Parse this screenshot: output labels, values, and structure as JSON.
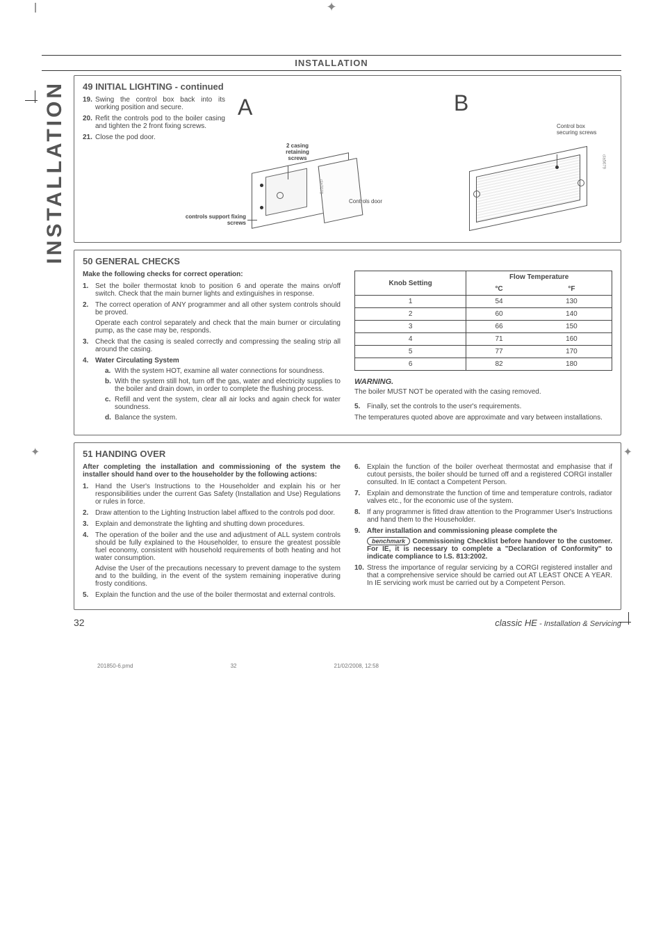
{
  "header_banner": "INSTALLATION",
  "side_tab": "INSTALLATION",
  "color_strip_left": [
    "#000000",
    "#000000",
    "#3a3a3a",
    "#6a6a6a",
    "#9a9a9a",
    "#c3c3c3",
    "#ffffff"
  ],
  "color_strip_right": [
    "#00aeef",
    "#ec008c",
    "#fff200",
    "#000000",
    "#ed1c24",
    "#00a651",
    "#2e3192"
  ],
  "section49": {
    "num": "49",
    "title": "INITIAL LIGHTING - continued",
    "items": [
      {
        "n": "19.",
        "t": "Swing the control box back into its working position and secure."
      },
      {
        "n": "20.",
        "t": "Refit the controls pod to the boiler casing and tighten the 2 front fixing screws."
      },
      {
        "n": "21.",
        "t": "Close the pod door."
      }
    ],
    "figA_letter": "A",
    "figB_letter": "B",
    "labels": {
      "casing_screws": "2 casing retaining screws",
      "support_screws": "controls support fixing screws",
      "controls_door": "Controls door",
      "control_box_screws": "Control box securing screws",
      "cla_a": "cla7078",
      "cla_b": "cla5679"
    }
  },
  "section50": {
    "num": "50",
    "title": "GENERAL CHECKS",
    "intro": "Make the following checks for correct operation:",
    "items": [
      {
        "n": "1.",
        "t": "Set the boiler thermostat knob to position 6 and operate the mains on/off switch. Check that the main burner lights and extinguishes in response."
      },
      {
        "n": "2.",
        "t": "The correct operation of ANY programmer and all other system controls should be proved.",
        "extra": "Operate each control separately and check that the main burner or circulating pump, as the case may be, responds."
      },
      {
        "n": "3.",
        "t": "Check that the casing is sealed correctly and compressing the sealing strip all around the casing."
      },
      {
        "n": "4.",
        "t": "Water Circulating System",
        "bold": true,
        "sub": [
          {
            "sn": "a.",
            "st": "With the system HOT, examine all water connections for soundness."
          },
          {
            "sn": "b.",
            "st": "With the system still hot, turn off the gas, water and electricity supplies to the boiler and drain down, in order to complete the flushing process."
          },
          {
            "sn": "c.",
            "st": "Refill and vent the system, clear all air locks and again check for water soundness."
          },
          {
            "sn": "d.",
            "st": "Balance the system."
          }
        ]
      }
    ],
    "table": {
      "header_setting": "Knob Setting",
      "header_flow": "Flow Temperature",
      "header_c": "°C",
      "header_f": "°F",
      "rows": [
        {
          "k": "1",
          "c": "54",
          "f": "130"
        },
        {
          "k": "2",
          "c": "60",
          "f": "140"
        },
        {
          "k": "3",
          "c": "66",
          "f": "150"
        },
        {
          "k": "4",
          "c": "71",
          "f": "160"
        },
        {
          "k": "5",
          "c": "77",
          "f": "170"
        },
        {
          "k": "6",
          "c": "82",
          "f": "180"
        }
      ]
    },
    "warning_title": "WARNING.",
    "warning_text": "The boiler MUST NOT be operated with the casing removed.",
    "item5": {
      "n": "5.",
      "t": "Finally, set the controls to the user's requirements."
    },
    "note": "The temperatures quoted above are approximate and vary between installations."
  },
  "section51": {
    "num": "51",
    "title": "HANDING OVER",
    "intro": "After completing the installation and commissioning of the system the installer should hand over to the householder by the following actions:",
    "left": [
      {
        "n": "1.",
        "t": "Hand the User's Instructions to the Householder and explain his or her responsibilities under the current Gas Safety (Installation and Use) Regulations or rules in force."
      },
      {
        "n": "2.",
        "t": "Draw attention to the Lighting Instruction label affixed to the controls pod door."
      },
      {
        "n": "3.",
        "t": "Explain and demonstrate the lighting and shutting down procedures."
      },
      {
        "n": "4.",
        "t": "The operation of the boiler and the use and adjustment of ALL system controls should be fully explained to the Householder, to ensure the greatest possible fuel economy, consistent with household requirements of both heating and hot water consumption.",
        "extra": "Advise the User of the precautions necessary to prevent damage to the system and to the building, in the event of the system remaining inoperative during frosty conditions."
      },
      {
        "n": "5.",
        "t": "Explain the function and the use of the boiler thermostat and external controls."
      }
    ],
    "right": [
      {
        "n": "6.",
        "t": "Explain the function of the boiler overheat thermostat and emphasise that if cutout persists, the boiler should be turned off and a registered CORGI installer consulted. In IE contact a Competent Person."
      },
      {
        "n": "7.",
        "t": "Explain and demonstrate the function of time and temperature controls, radiator valves etc., for the economic use of the system."
      },
      {
        "n": "8.",
        "t": "If any programmer is fitted draw attention to the Programmer User's Instructions and hand them to the Householder."
      },
      {
        "n": "9.",
        "bold": true,
        "t": "After installation and commissioning please complete the",
        "extra_html": true,
        "extra": " Commissioning Checklist before handover to the customer.  For IE, it is necessary to complete a \"Declaration of Conformity\" to indicate compliance to I.S. 813:2002.",
        "benchmark": "benchmark"
      },
      {
        "n": "10.",
        "t": "Stress the importance of regular servicing by a CORGI registered installer and that a comprehensive service should be carried out AT LEAST ONCE A YEAR.  In IE servicing work must be carried out by a Competent Person."
      }
    ]
  },
  "footer": {
    "page": "32",
    "product": "classic HE",
    "doc": " - Installation & Servicing"
  },
  "print": {
    "file": "201850-6.pmd",
    "page": "32",
    "date": "21/02/2008, 12:58"
  }
}
